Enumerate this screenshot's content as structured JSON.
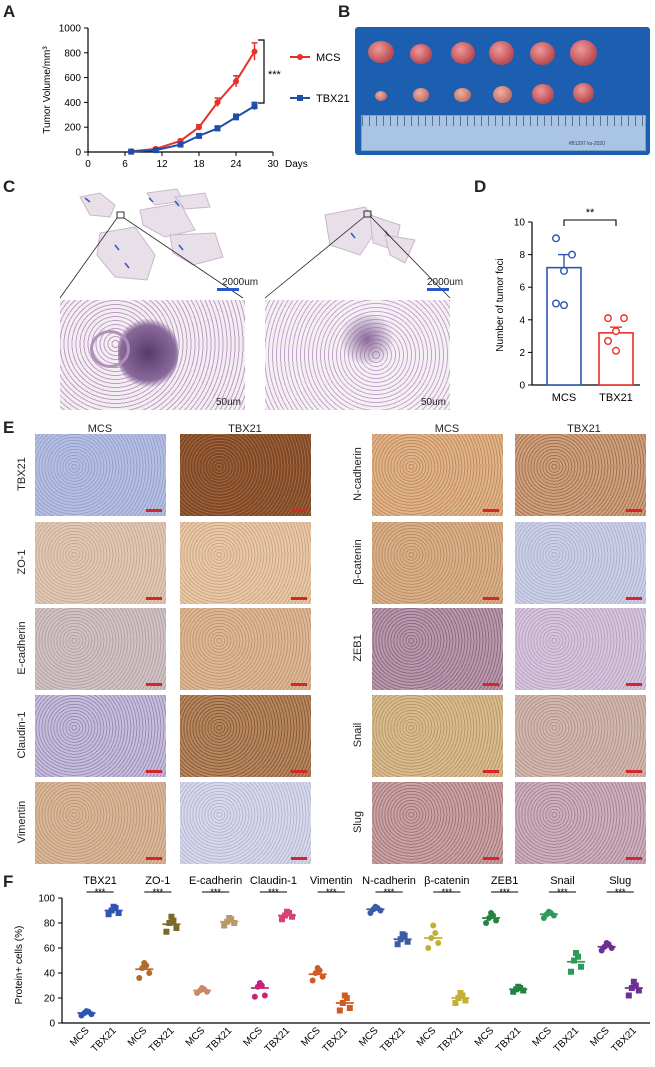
{
  "panel_letters": {
    "a": "A",
    "b": "B",
    "c": "C",
    "d": "D",
    "e": "E",
    "f": "F"
  },
  "colors": {
    "mcs_line": "#e8302b",
    "tbx21_line": "#1f4ea8",
    "d_mcs": "#2e55b3",
    "d_tbx21": "#e8302b",
    "scale_red": "#d7262b"
  },
  "panel_b": {
    "ruler_text": "#B1297  ks-2020"
  },
  "panel_c": {
    "scale_big_left": "2000um",
    "scale_big_right": "2000um",
    "scale_small_left": "50um",
    "scale_small_right": "50um"
  },
  "panel_e": {
    "left_cols": [
      "MCS",
      "TBX21"
    ],
    "right_cols": [
      "MCS",
      "TBX21"
    ],
    "left_rows": [
      "TBX21",
      "ZO-1",
      "E-cadherin",
      "Claudin-1",
      "Vimentin"
    ],
    "right_rows": [
      "N-cadherin",
      "β-catenin",
      "ZEB1",
      "Snail",
      "Slug"
    ]
  },
  "chart_data": [
    {
      "id": "A",
      "type": "line",
      "xlabel": "Days",
      "ylabel": "Tumor Volume/mm³",
      "xlim": [
        0,
        30
      ],
      "ylim": [
        0,
        1000
      ],
      "xticks": [
        0,
        6,
        12,
        18,
        24,
        30
      ],
      "yticks": [
        0,
        200,
        400,
        600,
        800,
        1000
      ],
      "series": [
        {
          "name": "MCS",
          "color": "#e8302b",
          "x": [
            7,
            11,
            15,
            18,
            21,
            24,
            27
          ],
          "y": [
            5,
            25,
            90,
            200,
            400,
            570,
            810
          ],
          "err": [
            2,
            5,
            10,
            20,
            35,
            45,
            70
          ]
        },
        {
          "name": "TBX21",
          "color": "#1f4ea8",
          "x": [
            7,
            11,
            15,
            18,
            21,
            24,
            27
          ],
          "y": [
            3,
            15,
            60,
            130,
            190,
            280,
            370
          ],
          "err": [
            2,
            4,
            8,
            15,
            20,
            25,
            30
          ]
        }
      ],
      "significance": "***"
    },
    {
      "id": "D",
      "type": "bar",
      "ylabel": "Number of tumor foci",
      "ylim": [
        0,
        10
      ],
      "yticks": [
        0,
        2,
        4,
        6,
        8,
        10
      ],
      "categories": [
        "MCS",
        "TBX21"
      ],
      "values": [
        7.2,
        3.2
      ],
      "sem": [
        0.8,
        0.35
      ],
      "points": [
        [
          9,
          8,
          7,
          5,
          4.9
        ],
        [
          4.1,
          4.1,
          3.3,
          2.7,
          2.1
        ]
      ],
      "significance": "**"
    },
    {
      "id": "F",
      "type": "scatter",
      "ylabel": "Protein+ cells (%)",
      "ylim": [
        0,
        100
      ],
      "yticks": [
        0,
        20,
        40,
        60,
        80,
        100
      ],
      "groups": [
        "TBX21",
        "ZO-1",
        "E-cadherin",
        "Claudin-1",
        "Vimentin",
        "N-cadherin",
        "β-catenin",
        "ZEB1",
        "Snail",
        "Slug"
      ],
      "xcats": [
        "MCS",
        "TBX21"
      ],
      "significance": "***",
      "series": [
        {
          "name": "TBX21",
          "colors": [
            "#2e55b3",
            "#2e55b3"
          ],
          "mean": [
            8,
            90
          ],
          "pts": [
            [
              6,
              7,
              8,
              9,
              9.5
            ],
            [
              87,
              88,
              90,
              92,
              93
            ]
          ]
        },
        {
          "name": "ZO-1",
          "colors": [
            "#b06a2a",
            "#7a6a2a"
          ],
          "mean": [
            43,
            79
          ],
          "pts": [
            [
              36,
              40,
              44,
              46,
              48
            ],
            [
              73,
              76,
              80,
              82,
              85
            ]
          ]
        },
        {
          "name": "E-cadherin",
          "colors": [
            "#c98a6a",
            "#b89a6a"
          ],
          "mean": [
            26,
            81
          ],
          "pts": [
            [
              24,
              25,
              26,
              27,
              28
            ],
            [
              78,
              80,
              81,
              83,
              84
            ]
          ]
        },
        {
          "name": "Claudin-1",
          "colors": [
            "#c4257a",
            "#d9407a"
          ],
          "mean": [
            28,
            86
          ],
          "pts": [
            [
              21,
              22,
              29,
              30,
              32
            ],
            [
              83,
              85,
              86,
              88,
              89
            ]
          ]
        },
        {
          "name": "Vimentin",
          "colors": [
            "#cf5a24",
            "#cf5a24"
          ],
          "mean": [
            39,
            16
          ],
          "pts": [
            [
              34,
              37,
              40,
              42,
              44
            ],
            [
              10,
              12,
              16,
              20,
              22
            ]
          ]
        },
        {
          "name": "N-cadherin",
          "colors": [
            "#3c5aa8",
            "#3c5aa8"
          ],
          "mean": [
            91,
            67
          ],
          "pts": [
            [
              88,
              90,
              91,
              92,
              93
            ],
            [
              63,
              65,
              67,
              70,
              71
            ]
          ]
        },
        {
          "name": "β-catenin",
          "colors": [
            "#c4b030",
            "#c4b030"
          ],
          "mean": [
            68,
            20
          ],
          "pts": [
            [
              60,
              64,
              68,
              72,
              78
            ],
            [
              16,
              18,
              20,
              22,
              24
            ]
          ]
        },
        {
          "name": "ZEB1",
          "colors": [
            "#25833f",
            "#25833f"
          ],
          "mean": [
            84,
            27
          ],
          "pts": [
            [
              80,
              82,
              84,
              86,
              88
            ],
            [
              25,
              26,
              27,
              28,
              29
            ]
          ]
        },
        {
          "name": "Snail",
          "colors": [
            "#2e9a5a",
            "#2e9a5a"
          ],
          "mean": [
            87,
            49
          ],
          "pts": [
            [
              84,
              86,
              87,
              88,
              89
            ],
            [
              41,
              45,
              50,
              53,
              56
            ]
          ]
        },
        {
          "name": "Slug",
          "colors": [
            "#6b3092",
            "#6b3092"
          ],
          "mean": [
            61,
            28
          ],
          "pts": [
            [
              58,
              60,
              61,
              63,
              64
            ],
            [
              22,
              26,
              28,
              30,
              33
            ]
          ]
        }
      ]
    }
  ]
}
